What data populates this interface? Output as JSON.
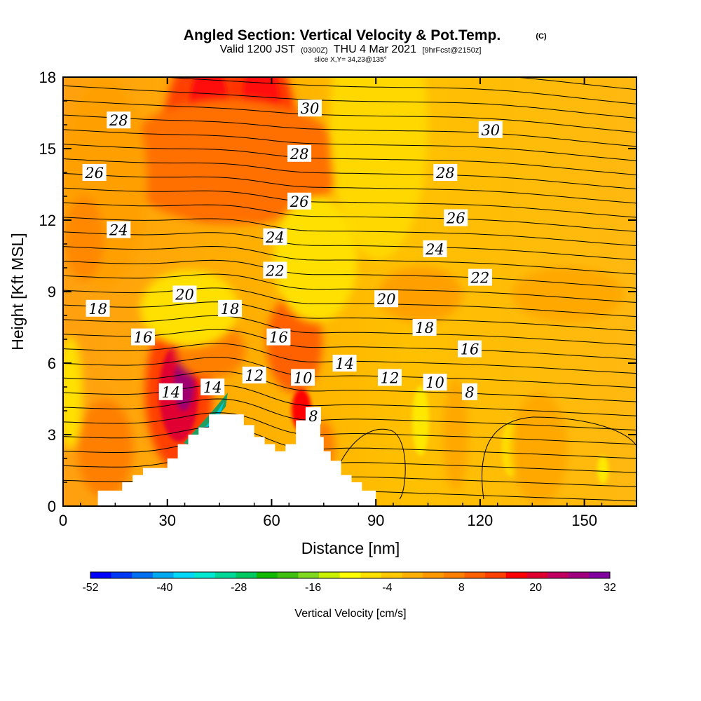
{
  "title": {
    "main": "Angled Section: Vertical Velocity & Pot.Temp.",
    "copyright": "(C)",
    "valid_prefix": "Valid 1200 JST",
    "valid_utc": "(0300Z)",
    "valid_date": "THU 4 Mar 2021",
    "forecast": "[9hrFcst@2150z]",
    "slice": "slice X,Y= 34,23@135°"
  },
  "chart_data": {
    "type": "heatmap",
    "xlabel": "Distance [nm]",
    "ylabel": "Height [Kft MSL]",
    "xlim": [
      0,
      165
    ],
    "ylim": [
      0,
      18
    ],
    "x_ticks": [
      0,
      30,
      60,
      90,
      120,
      150
    ],
    "y_ticks": [
      0,
      3,
      6,
      9,
      12,
      15,
      18
    ],
    "field": "Vertical Velocity",
    "field_units": "cm/s",
    "overlay": "Potential temperature contours (C)",
    "colorbar": {
      "label": "Vertical Velocity [cm/s]",
      "ticks": [
        -52,
        -40,
        -28,
        -16,
        -4,
        8,
        20,
        32
      ],
      "min": -52,
      "max": 32,
      "colors": [
        "#0000ff",
        "#0038f8",
        "#0070f0",
        "#00a8f0",
        "#00d8f8",
        "#00e8d0",
        "#00d898",
        "#00c860",
        "#10b800",
        "#40c010",
        "#80d820",
        "#c8f000",
        "#ffff00",
        "#ffe000",
        "#ffc800",
        "#ffb000",
        "#ff9800",
        "#ff8000",
        "#ff6000",
        "#ff4000",
        "#ff0000",
        "#e00030",
        "#c00060",
        "#a00080",
        "#8000a0"
      ]
    },
    "theta_contour_labels": [
      {
        "value": "28",
        "x": 16,
        "y": 16.2
      },
      {
        "value": "30",
        "x": 71,
        "y": 16.7
      },
      {
        "value": "30",
        "x": 123,
        "y": 15.8
      },
      {
        "value": "28",
        "x": 68,
        "y": 14.8
      },
      {
        "value": "28",
        "x": 110,
        "y": 14.0
      },
      {
        "value": "26",
        "x": 9,
        "y": 14.0
      },
      {
        "value": "26",
        "x": 68,
        "y": 12.8
      },
      {
        "value": "26",
        "x": 113,
        "y": 12.1
      },
      {
        "value": "24",
        "x": 16,
        "y": 11.6
      },
      {
        "value": "24",
        "x": 61,
        "y": 11.3
      },
      {
        "value": "24",
        "x": 107,
        "y": 10.8
      },
      {
        "value": "22",
        "x": 61,
        "y": 9.9
      },
      {
        "value": "22",
        "x": 120,
        "y": 9.6
      },
      {
        "value": "20",
        "x": 35,
        "y": 8.9
      },
      {
        "value": "20",
        "x": 93,
        "y": 8.7
      },
      {
        "value": "18",
        "x": 10,
        "y": 8.3
      },
      {
        "value": "18",
        "x": 48,
        "y": 8.3
      },
      {
        "value": "18",
        "x": 104,
        "y": 7.5
      },
      {
        "value": "16",
        "x": 23,
        "y": 7.1
      },
      {
        "value": "16",
        "x": 62,
        "y": 7.1
      },
      {
        "value": "16",
        "x": 117,
        "y": 6.6
      },
      {
        "value": "14",
        "x": 81,
        "y": 6.0
      },
      {
        "value": "14",
        "x": 31,
        "y": 4.8
      },
      {
        "value": "14",
        "x": 43,
        "y": 5.0
      },
      {
        "value": "12",
        "x": 55,
        "y": 5.5
      },
      {
        "value": "12",
        "x": 94,
        "y": 5.4
      },
      {
        "value": "10",
        "x": 69,
        "y": 5.4
      },
      {
        "value": "10",
        "x": 107,
        "y": 5.2
      },
      {
        "value": "8",
        "x": 117,
        "y": 4.8
      },
      {
        "value": "8",
        "x": 72,
        "y": 3.8
      }
    ],
    "terrain_nm_kft": [
      [
        0,
        0
      ],
      [
        10,
        0
      ],
      [
        10,
        0.65
      ],
      [
        17,
        0.65
      ],
      [
        17,
        1.0
      ],
      [
        20,
        1.0
      ],
      [
        20,
        1.3
      ],
      [
        23,
        1.3
      ],
      [
        23,
        1.6
      ],
      [
        30,
        1.6
      ],
      [
        30,
        2.0
      ],
      [
        33,
        2.0
      ],
      [
        33,
        2.6
      ],
      [
        36,
        2.6
      ],
      [
        36,
        3.0
      ],
      [
        39,
        3.0
      ],
      [
        39,
        3.3
      ],
      [
        42,
        3.3
      ],
      [
        42,
        3.85
      ],
      [
        52,
        3.85
      ],
      [
        52,
        3.4
      ],
      [
        55,
        3.4
      ],
      [
        55,
        2.9
      ],
      [
        58,
        2.9
      ],
      [
        58,
        2.6
      ],
      [
        61,
        2.6
      ],
      [
        61,
        2.3
      ],
      [
        64,
        2.3
      ],
      [
        64,
        2.6
      ],
      [
        67,
        2.6
      ],
      [
        67,
        3.6
      ],
      [
        74,
        3.6
      ],
      [
        74,
        2.9
      ],
      [
        75,
        2.9
      ],
      [
        75,
        2.3
      ],
      [
        77,
        2.3
      ],
      [
        77,
        1.9
      ],
      [
        80,
        1.9
      ],
      [
        80,
        1.3
      ],
      [
        83,
        1.3
      ],
      [
        83,
        1.0
      ],
      [
        86,
        1.0
      ],
      [
        86,
        0.65
      ],
      [
        90,
        0.65
      ],
      [
        90,
        0
      ],
      [
        165,
        0
      ]
    ]
  }
}
